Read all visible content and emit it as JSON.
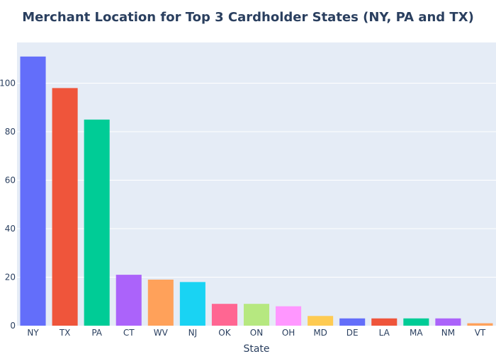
{
  "chart_data": {
    "type": "bar",
    "title": "Merchant Location for Top 3 Cardholder States (NY, PA and TX)",
    "xlabel": "State",
    "ylabel": "",
    "categories": [
      "NY",
      "TX",
      "PA",
      "CT",
      "WV",
      "NJ",
      "OK",
      "ON",
      "OH",
      "MD",
      "DE",
      "LA",
      "MA",
      "NM",
      "VT"
    ],
    "values": [
      111,
      98,
      85,
      21,
      19,
      18,
      9,
      9,
      8,
      4,
      3,
      3,
      3,
      3,
      1
    ],
    "colors": [
      "#636efa",
      "#EF553B",
      "#00cc96",
      "#ab63fa",
      "#FFA15A",
      "#19d3f3",
      "#FF6692",
      "#B6E880",
      "#FF97FF",
      "#FECB52",
      "#636efa",
      "#EF553B",
      "#00cc96",
      "#ab63fa",
      "#FFA15A"
    ],
    "ylim": [
      0,
      116.8
    ],
    "yticks": [
      0,
      20,
      40,
      60,
      80,
      100
    ],
    "grid": true,
    "legend": "none",
    "plot_background": "#E5ECF6",
    "grid_color": "#ffffff",
    "text_color": "#2a3f5f"
  }
}
